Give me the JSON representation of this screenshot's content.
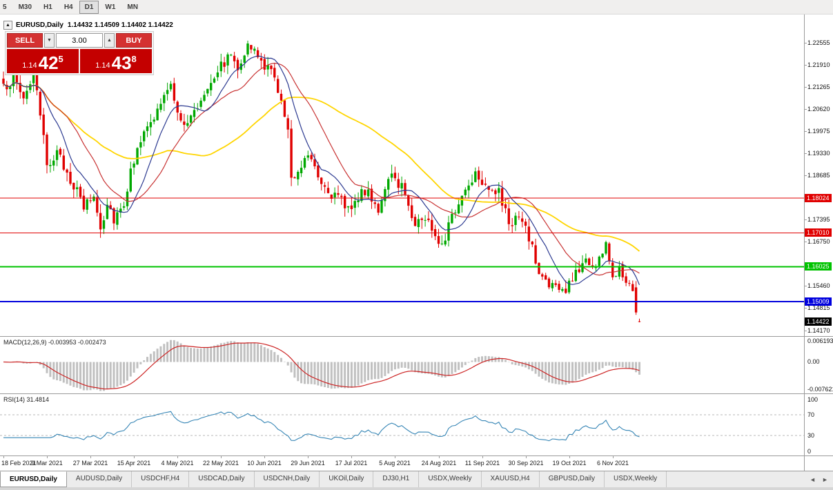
{
  "toolbar": {
    "periods": [
      {
        "label": "5",
        "active": false
      },
      {
        "label": "M30",
        "active": false
      },
      {
        "label": "H1",
        "active": false
      },
      {
        "label": "H4",
        "active": false
      },
      {
        "label": "D1",
        "active": true
      },
      {
        "label": "W1",
        "active": false
      },
      {
        "label": "MN",
        "active": false
      }
    ]
  },
  "chart": {
    "title_symbol": "EURUSD,Daily",
    "title_ohlc": "1.14432 1.14509 1.14402 1.14422",
    "collapse_glyph": "▲"
  },
  "one_click": {
    "sell_label": "SELL",
    "buy_label": "BUY",
    "volume": "3.00",
    "spin_down_glyph": "▼",
    "spin_up_glyph": "▲",
    "sell_price": {
      "small": "1.14",
      "big": "42",
      "sup": "5"
    },
    "buy_price": {
      "small": "1.14",
      "big": "43",
      "sup": "8"
    }
  },
  "price_scale": {
    "ticks": [
      {
        "label": "1.22555",
        "price": 1.22555
      },
      {
        "label": "1.21910",
        "price": 1.2191
      },
      {
        "label": "1.21265",
        "price": 1.21265
      },
      {
        "label": "1.20620",
        "price": 1.2062
      },
      {
        "label": "1.19975",
        "price": 1.19975
      },
      {
        "label": "1.19330",
        "price": 1.1933
      },
      {
        "label": "1.18685",
        "price": 1.18685
      },
      {
        "label": "1.17395",
        "price": 1.17395
      },
      {
        "label": "1.16750",
        "price": 1.1675
      },
      {
        "label": "1.15460",
        "price": 1.1546
      },
      {
        "label": "1.14815",
        "price": 1.14815
      },
      {
        "label": "1.14170",
        "price": 1.1417
      }
    ],
    "tags": [
      {
        "label": "1.18024",
        "price": 1.18024,
        "bg": "#e00000",
        "fg": "#ffffff"
      },
      {
        "label": "1.17010",
        "price": 1.1701,
        "bg": "#e00000",
        "fg": "#ffffff"
      },
      {
        "label": "1.16025",
        "price": 1.16025,
        "bg": "#00c300",
        "fg": "#ffffff"
      },
      {
        "label": "1.15009",
        "price": 1.15009,
        "bg": "#0000dd",
        "fg": "#ffffff"
      },
      {
        "label": "1.14422",
        "price": 1.14422,
        "bg": "#000000",
        "fg": "#ffffff"
      }
    ]
  },
  "hlines": [
    {
      "price": 1.18024,
      "color": "#e00000",
      "width": 1
    },
    {
      "price": 1.1701,
      "color": "#e00000",
      "width": 1
    },
    {
      "price": 1.16025,
      "color": "#00c300",
      "width": 2
    },
    {
      "price": 1.15009,
      "color": "#0000dd",
      "width": 2
    }
  ],
  "macd": {
    "label": "MACD(12,26,9) -0.003953 -0.002473",
    "axis_top": "0.006193",
    "axis_mid": "0.00",
    "axis_bottom": "-0.007621"
  },
  "rsi": {
    "label": "RSI(14) 31.4814",
    "axis": [
      "100",
      "70",
      "30",
      "0"
    ],
    "levels": [
      70,
      30
    ]
  },
  "tabs": [
    {
      "label": "EURUSD,Daily",
      "active": true
    },
    {
      "label": "AUDUSD,Daily",
      "active": false
    },
    {
      "label": "USDCHF,H4",
      "active": false
    },
    {
      "label": "USDCAD,Daily",
      "active": false
    },
    {
      "label": "USDCNH,Daily",
      "active": false
    },
    {
      "label": "UKOil,Daily",
      "active": false
    },
    {
      "label": "DJ30,H1",
      "active": false
    },
    {
      "label": "USDX,Weekly",
      "active": false
    },
    {
      "label": "XAUUSD,H4",
      "active": false
    },
    {
      "label": "GBPUSD,Daily",
      "active": false
    },
    {
      "label": "USDX,Weekly",
      "active": false
    }
  ],
  "tab_scroll": {
    "left": "◄",
    "right": "►"
  },
  "colors": {
    "up": "#00a800",
    "down": "#e00000",
    "ma_fast": "#2b3990",
    "ma_mid": "#c83232",
    "ma_slow": "#ffd500",
    "macd_hist": "#c0c0c0",
    "macd_signal": "#cc2222",
    "rsi": "#3585b5"
  },
  "chart_data": {
    "type": "candlestick",
    "symbol": "EURUSD",
    "timeframe": "Daily",
    "visible_price_range": [
      1.14,
      1.2323
    ],
    "x_labels": [
      "18 Feb 2021",
      "9 Mar 2021",
      "27 Mar 2021",
      "15 Apr 2021",
      "4 May 2021",
      "22 May 2021",
      "10 Jun 2021",
      "29 Jun 2021",
      "17 Jul 2021",
      "5 Aug 2021",
      "24 Aug 2021",
      "11 Sep 2021",
      "30 Sep 2021",
      "19 Oct 2021",
      "6 Nov 2021"
    ],
    "candles_per_label": 13,
    "last_candle": {
      "open": 1.14432,
      "high": 1.14509,
      "low": 1.14402,
      "close": 1.14422
    },
    "anchors": [
      [
        0,
        1.212
      ],
      [
        3,
        1.2155
      ],
      [
        6,
        1.2095
      ],
      [
        9,
        1.2165
      ],
      [
        13,
        1.1905
      ],
      [
        16,
        1.193
      ],
      [
        20,
        1.186
      ],
      [
        24,
        1.1775
      ],
      [
        27,
        1.181
      ],
      [
        29,
        1.1715
      ],
      [
        31,
        1.179
      ],
      [
        33,
        1.1745
      ],
      [
        36,
        1.179
      ],
      [
        40,
        1.196
      ],
      [
        44,
        1.2015
      ],
      [
        47,
        1.208
      ],
      [
        50,
        1.2125
      ],
      [
        54,
        1.2005
      ],
      [
        58,
        1.207
      ],
      [
        62,
        1.215
      ],
      [
        65,
        1.219
      ],
      [
        68,
        1.222
      ],
      [
        70,
        1.219
      ],
      [
        73,
        1.2245
      ],
      [
        76,
        1.2215
      ],
      [
        78,
        1.2185
      ],
      [
        80,
        1.217
      ],
      [
        82,
        1.2125
      ],
      [
        84,
        1.2035
      ],
      [
        85,
        1.199
      ],
      [
        86,
        1.1865
      ],
      [
        88,
        1.1885
      ],
      [
        91,
        1.1935
      ],
      [
        93,
        1.1905
      ],
      [
        95,
        1.185
      ],
      [
        98,
        1.1815
      ],
      [
        100,
        1.18
      ],
      [
        103,
        1.1775
      ],
      [
        106,
        1.1805
      ],
      [
        109,
        1.1825
      ],
      [
        112,
        1.177
      ],
      [
        116,
        1.1865
      ],
      [
        119,
        1.184
      ],
      [
        123,
        1.173
      ],
      [
        126,
        1.1745
      ],
      [
        129,
        1.17
      ],
      [
        131,
        1.167
      ],
      [
        134,
        1.1745
      ],
      [
        137,
        1.181
      ],
      [
        141,
        1.188
      ],
      [
        144,
        1.1845
      ],
      [
        148,
        1.1815
      ],
      [
        151,
        1.173
      ],
      [
        154,
        1.1745
      ],
      [
        157,
        1.169
      ],
      [
        160,
        1.158
      ],
      [
        163,
        1.1555
      ],
      [
        166,
        1.1535
      ],
      [
        168,
        1.153
      ],
      [
        171,
        1.1585
      ],
      [
        174,
        1.1625
      ],
      [
        177,
        1.16
      ],
      [
        179,
        1.165
      ],
      [
        180,
        1.1675
      ],
      [
        182,
        1.156
      ],
      [
        184,
        1.161
      ],
      [
        186,
        1.1565
      ],
      [
        188,
        1.1545
      ],
      [
        189,
        1.1469
      ],
      [
        190,
        1.14422
      ]
    ],
    "horizontal_lines": [
      1.18024,
      1.1701,
      1.16025,
      1.15009
    ],
    "moving_averages": [
      {
        "period": 10,
        "color": "#2b3990"
      },
      {
        "period": 20,
        "color": "#c83232"
      },
      {
        "period": 50,
        "color": "#ffd500"
      }
    ],
    "indicators": [
      {
        "name": "MACD(12,26,9)",
        "main": -0.003953,
        "signal": -0.002473,
        "axis": [
          0.006193,
          0.0,
          -0.007621
        ]
      },
      {
        "name": "RSI(14)",
        "value": 31.4814,
        "levels": [
          70,
          30
        ],
        "axis": [
          100,
          70,
          30,
          0
        ]
      }
    ]
  }
}
